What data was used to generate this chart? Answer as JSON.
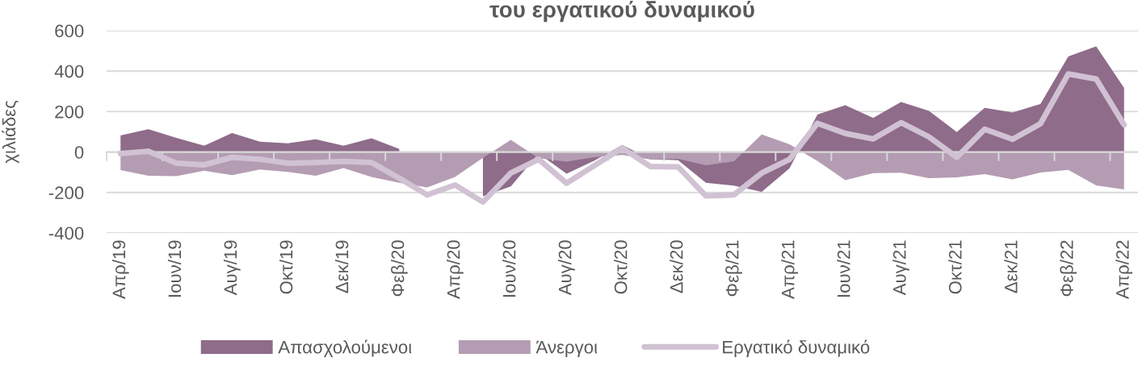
{
  "chart_data": {
    "type": "area",
    "title": "του εργατικού δυναμικού",
    "ylabel": "χιλιάδες",
    "categories": [
      "Απρ/19",
      null,
      "Ιουν/19",
      null,
      "Αυγ/19",
      null,
      "Οκτ/19",
      null,
      "Δεκ/19",
      null,
      "Φεβ/20",
      null,
      "Απρ/20",
      null,
      "Ιουν/20",
      null,
      "Αυγ/20",
      null,
      "Οκτ/20",
      null,
      "Δεκ/20",
      null,
      "Φεβ/21",
      null,
      "Απρ/21",
      null,
      "Ιουν/21",
      null,
      "Αυγ/21",
      null,
      "Οκτ/21",
      null,
      "Δεκ/21",
      null,
      "Φεβ/22",
      null,
      "Απρ/22"
    ],
    "series": [
      {
        "name": "Απασχολούμενοι",
        "color": "#8e6c8a",
        "values": [
          82,
          113,
          70,
          31,
          94,
          51,
          43,
          63,
          31,
          68,
          15,
          null,
          null,
          -219,
          -170,
          -8,
          -107,
          -42,
          35,
          -35,
          -40,
          -152,
          -166,
          -197,
          -80,
          186,
          231,
          169,
          247,
          204,
          99,
          219,
          196,
          237,
          473,
          522,
          317
        ]
      },
      {
        "name": "Άνεργοι",
        "color": "#b49cb2",
        "values": [
          -89,
          -117,
          -119,
          -92,
          -114,
          -86,
          -98,
          -117,
          -79,
          -123,
          -152,
          -175,
          -123,
          -28,
          60,
          -30,
          -47,
          -25,
          -15,
          -36,
          -33,
          -65,
          -46,
          87,
          38,
          -44,
          -139,
          -104,
          -102,
          -129,
          -125,
          -109,
          -135,
          -101,
          -88,
          -165,
          -185
        ]
      },
      {
        "name": "Εργατικό δυναμικό",
        "type": "line",
        "color": "#d1c2d3",
        "values": [
          -7,
          4,
          -55,
          -63,
          -26,
          -36,
          -55,
          -52,
          -46,
          -52,
          -129,
          -212,
          -163,
          -247,
          -104,
          -36,
          -154,
          -67,
          20,
          -71,
          -73,
          -217,
          -212,
          -104,
          -36,
          142,
          92,
          65,
          145,
          75,
          -26,
          113,
          63,
          140,
          386,
          361,
          135
        ]
      }
    ],
    "ylim": [
      -400,
      600
    ],
    "yticks": [
      -400,
      -200,
      0,
      200,
      400,
      600
    ],
    "grid": "y",
    "legend": "bottom"
  }
}
